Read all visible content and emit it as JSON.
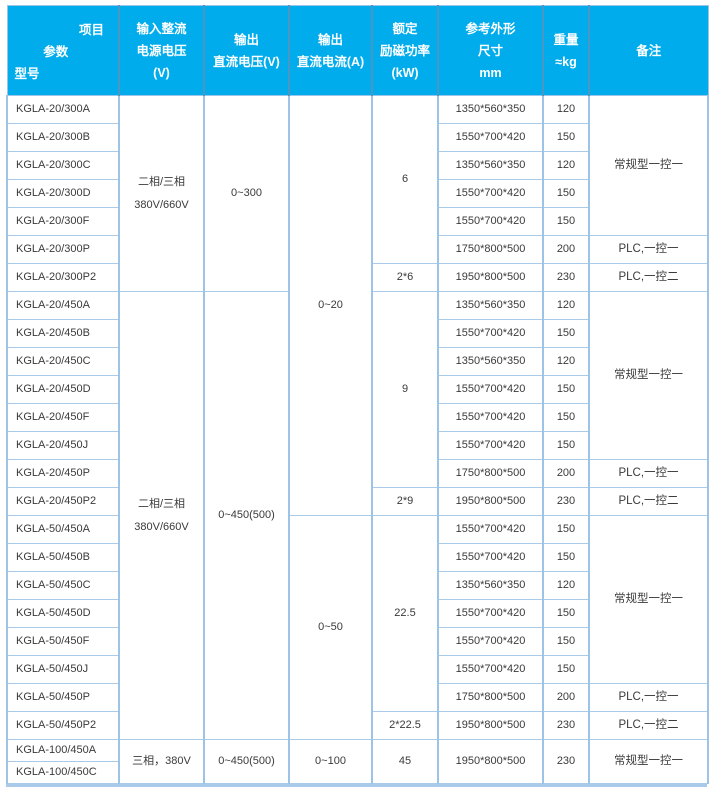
{
  "colors": {
    "header_bg": "#00acec",
    "header_text": "#ffffff",
    "header_separator": "#4a97c6",
    "grid_border": "#9dc3e6",
    "bottom_border": "#a9cbe9",
    "body_text": "#3a3a3a"
  },
  "table": {
    "header": {
      "model": [
        "项目",
        "参数",
        "型号"
      ],
      "input": [
        "输入整流",
        "电源电压",
        "(V)"
      ],
      "vdc": [
        "输出",
        "直流电压(V)"
      ],
      "adc": [
        "输出",
        "直流电流(A)"
      ],
      "power": [
        "额定",
        "励磁功率",
        "(kW)"
      ],
      "dims": [
        "参考外形",
        "尺寸",
        "mm"
      ],
      "weight": [
        "重量",
        "≈kg"
      ],
      "note": [
        "备注"
      ]
    },
    "rows": [
      {
        "cells": [
          {
            "col": "model",
            "text": "KGLA-20/300A"
          },
          {
            "col": "input",
            "text": "二相/三相\n380V/660V",
            "rowspan": 7
          },
          {
            "col": "vdc",
            "text": "0~300",
            "rowspan": 7
          },
          {
            "col": "adc",
            "text": "0~20",
            "rowspan": 15
          },
          {
            "col": "power",
            "text": "6",
            "rowspan": 6
          },
          {
            "col": "dims",
            "text": "1350*560*350"
          },
          {
            "col": "weight",
            "text": "120"
          },
          {
            "col": "note",
            "text": "常规型一控一",
            "rowspan": 5
          }
        ]
      },
      {
        "cells": [
          {
            "col": "model",
            "text": "KGLA-20/300B"
          },
          {
            "col": "dims",
            "text": "1550*700*420"
          },
          {
            "col": "weight",
            "text": "150"
          }
        ]
      },
      {
        "cells": [
          {
            "col": "model",
            "text": "KGLA-20/300C"
          },
          {
            "col": "dims",
            "text": "1350*560*350"
          },
          {
            "col": "weight",
            "text": "120"
          }
        ]
      },
      {
        "cells": [
          {
            "col": "model",
            "text": "KGLA-20/300D"
          },
          {
            "col": "dims",
            "text": "1550*700*420"
          },
          {
            "col": "weight",
            "text": "150"
          }
        ]
      },
      {
        "cells": [
          {
            "col": "model",
            "text": "KGLA-20/300F"
          },
          {
            "col": "dims",
            "text": "1550*700*420"
          },
          {
            "col": "weight",
            "text": "150"
          }
        ]
      },
      {
        "cells": [
          {
            "col": "model",
            "text": "KGLA-20/300P"
          },
          {
            "col": "dims",
            "text": "1750*800*500"
          },
          {
            "col": "weight",
            "text": "200"
          },
          {
            "col": "note",
            "text": "PLC,一控一"
          }
        ]
      },
      {
        "cells": [
          {
            "col": "model",
            "text": "KGLA-20/300P2"
          },
          {
            "col": "power",
            "text": "2*6"
          },
          {
            "col": "dims",
            "text": "1950*800*500"
          },
          {
            "col": "weight",
            "text": "230"
          },
          {
            "col": "note",
            "text": "PLC,一控二"
          }
        ]
      },
      {
        "cells": [
          {
            "col": "model",
            "text": "KGLA-20/450A"
          },
          {
            "col": "input",
            "text": "二相/三相\n380V/660V",
            "rowspan": 16
          },
          {
            "col": "vdc",
            "text": "0~450(500)",
            "rowspan": 16
          },
          {
            "col": "power",
            "text": "9",
            "rowspan": 7
          },
          {
            "col": "dims",
            "text": "1350*560*350"
          },
          {
            "col": "weight",
            "text": "120"
          },
          {
            "col": "note",
            "text": "常规型一控一",
            "rowspan": 6
          }
        ]
      },
      {
        "cells": [
          {
            "col": "model",
            "text": "KGLA-20/450B"
          },
          {
            "col": "dims",
            "text": "1550*700*420"
          },
          {
            "col": "weight",
            "text": "150"
          }
        ]
      },
      {
        "cells": [
          {
            "col": "model",
            "text": "KGLA-20/450C"
          },
          {
            "col": "dims",
            "text": "1350*560*350"
          },
          {
            "col": "weight",
            "text": "120"
          }
        ]
      },
      {
        "cells": [
          {
            "col": "model",
            "text": "KGLA-20/450D"
          },
          {
            "col": "dims",
            "text": "1550*700*420"
          },
          {
            "col": "weight",
            "text": "150"
          }
        ]
      },
      {
        "cells": [
          {
            "col": "model",
            "text": "KGLA-20/450F"
          },
          {
            "col": "dims",
            "text": "1550*700*420"
          },
          {
            "col": "weight",
            "text": "150"
          }
        ]
      },
      {
        "cells": [
          {
            "col": "model",
            "text": "KGLA-20/450J"
          },
          {
            "col": "dims",
            "text": "1550*700*420"
          },
          {
            "col": "weight",
            "text": "150"
          }
        ]
      },
      {
        "cells": [
          {
            "col": "model",
            "text": "KGLA-20/450P"
          },
          {
            "col": "dims",
            "text": "1750*800*500"
          },
          {
            "col": "weight",
            "text": "200"
          },
          {
            "col": "note",
            "text": "PLC,一控一"
          }
        ]
      },
      {
        "cells": [
          {
            "col": "model",
            "text": "KGLA-20/450P2"
          },
          {
            "col": "power",
            "text": "2*9"
          },
          {
            "col": "dims",
            "text": "1950*800*500"
          },
          {
            "col": "weight",
            "text": "230"
          },
          {
            "col": "note",
            "text": "PLC,一控二"
          }
        ]
      },
      {
        "cells": [
          {
            "col": "model",
            "text": "KGLA-50/450A"
          },
          {
            "col": "adc",
            "text": "0~50",
            "rowspan": 8
          },
          {
            "col": "power",
            "text": "22.5",
            "rowspan": 7
          },
          {
            "col": "dims",
            "text": "1550*700*420"
          },
          {
            "col": "weight",
            "text": "150"
          },
          {
            "col": "note",
            "text": "常规型一控一",
            "rowspan": 6
          }
        ]
      },
      {
        "cells": [
          {
            "col": "model",
            "text": "KGLA-50/450B"
          },
          {
            "col": "dims",
            "text": "1550*700*420"
          },
          {
            "col": "weight",
            "text": "150"
          }
        ]
      },
      {
        "cells": [
          {
            "col": "model",
            "text": "KGLA-50/450C"
          },
          {
            "col": "dims",
            "text": "1350*560*350"
          },
          {
            "col": "weight",
            "text": "120"
          }
        ]
      },
      {
        "cells": [
          {
            "col": "model",
            "text": "KGLA-50/450D"
          },
          {
            "col": "dims",
            "text": "1550*700*420"
          },
          {
            "col": "weight",
            "text": "150"
          }
        ]
      },
      {
        "cells": [
          {
            "col": "model",
            "text": "KGLA-50/450F"
          },
          {
            "col": "dims",
            "text": "1550*700*420"
          },
          {
            "col": "weight",
            "text": "150"
          }
        ]
      },
      {
        "cells": [
          {
            "col": "model",
            "text": "KGLA-50/450J"
          },
          {
            "col": "dims",
            "text": "1550*700*420"
          },
          {
            "col": "weight",
            "text": "150"
          }
        ]
      },
      {
        "cells": [
          {
            "col": "model",
            "text": "KGLA-50/450P"
          },
          {
            "col": "dims",
            "text": "1750*800*500"
          },
          {
            "col": "weight",
            "text": "200"
          },
          {
            "col": "note",
            "text": "PLC,一控一"
          }
        ]
      },
      {
        "cells": [
          {
            "col": "model",
            "text": "KGLA-50/450P2"
          },
          {
            "col": "power",
            "text": "2*22.5"
          },
          {
            "col": "dims",
            "text": "1950*800*500"
          },
          {
            "col": "weight",
            "text": "230"
          },
          {
            "col": "note",
            "text": "PLC,一控二"
          }
        ]
      },
      {
        "short": true,
        "cells": [
          {
            "col": "model",
            "text": "KGLA-100/450A"
          },
          {
            "col": "input",
            "text": "三相，380V",
            "rowspan": 2
          },
          {
            "col": "vdc",
            "text": "0~450(500)",
            "rowspan": 2
          },
          {
            "col": "adc",
            "text": "0~100",
            "rowspan": 2
          },
          {
            "col": "power",
            "text": "45",
            "rowspan": 2
          },
          {
            "col": "dims",
            "text": "1950*800*500",
            "rowspan": 2
          },
          {
            "col": "weight",
            "text": "230",
            "rowspan": 2
          },
          {
            "col": "note",
            "text": "常规型一控一",
            "rowspan": 2
          }
        ]
      },
      {
        "short": true,
        "cells": [
          {
            "col": "model",
            "text": "KGLA-100/450C"
          }
        ]
      }
    ]
  }
}
